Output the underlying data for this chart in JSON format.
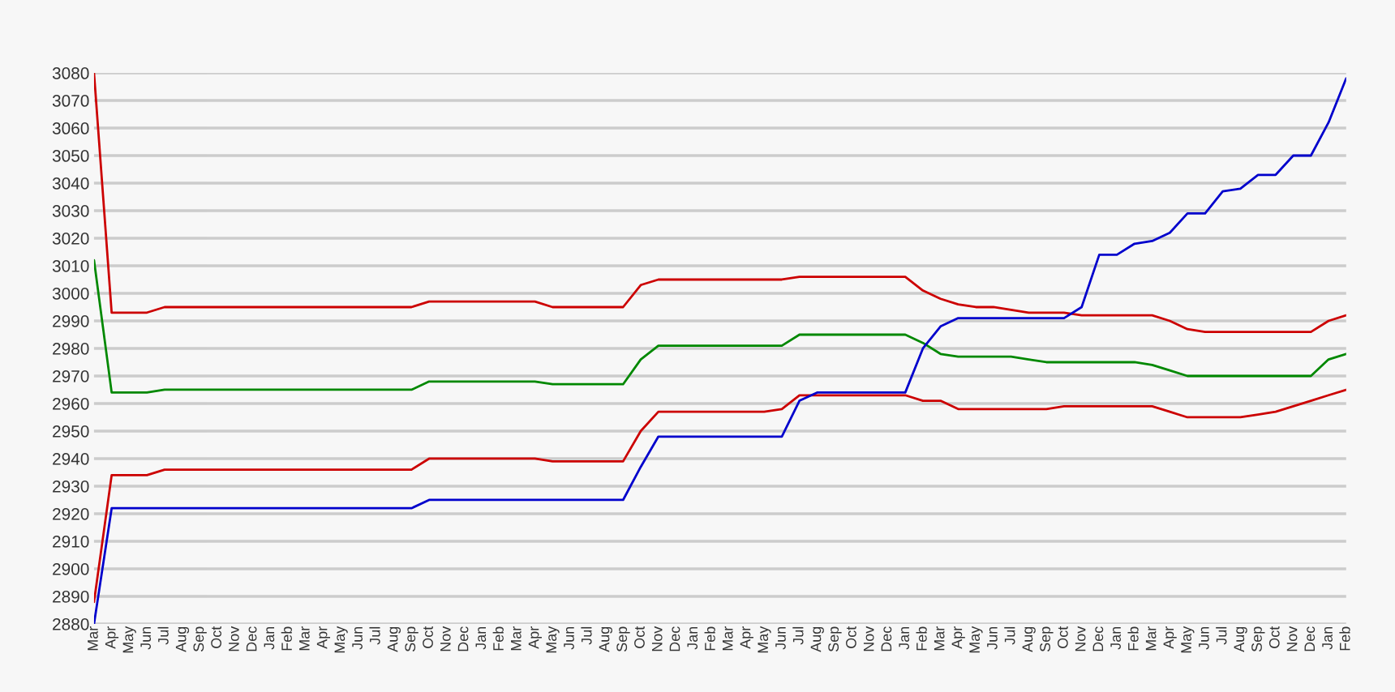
{
  "chart_data": {
    "type": "line",
    "categories": [
      "Mar",
      "Apr",
      "May",
      "Jun",
      "Jul",
      "Aug",
      "Sep",
      "Oct",
      "Nov",
      "Dec",
      "Jan",
      "Feb",
      "Mar",
      "Apr",
      "May",
      "Jun",
      "Jul",
      "Aug",
      "Sep",
      "Oct",
      "Nov",
      "Dec",
      "Jan",
      "Feb",
      "Mar",
      "Apr",
      "May",
      "Jun",
      "Jul",
      "Aug",
      "Sep",
      "Oct",
      "Nov",
      "Dec",
      "Jan",
      "Feb",
      "Mar",
      "Apr",
      "May",
      "Jun",
      "Jul",
      "Aug",
      "Sep",
      "Oct",
      "Nov",
      "Dec",
      "Jan",
      "Feb",
      "Mar",
      "Apr",
      "May",
      "Jun",
      "Jul",
      "Aug",
      "Sep",
      "Oct",
      "Nov",
      "Dec",
      "Jan",
      "Feb",
      "Mar",
      "Apr",
      "May",
      "Jun",
      "Jul",
      "Aug",
      "Sep",
      "Oct",
      "Nov",
      "Dec",
      "Jan",
      "Feb"
    ],
    "series": [
      {
        "color": "#cc0000",
        "values": [
          3080,
          2993,
          2993,
          2993,
          2995,
          2995,
          2995,
          2995,
          2995,
          2995,
          2995,
          2995,
          2995,
          2995,
          2995,
          2995,
          2995,
          2995,
          2995,
          2997,
          2997,
          2997,
          2997,
          2997,
          2997,
          2997,
          2995,
          2995,
          2995,
          2995,
          2995,
          3003,
          3005,
          3005,
          3005,
          3005,
          3005,
          3005,
          3005,
          3005,
          3006,
          3006,
          3006,
          3006,
          3006,
          3006,
          3006,
          3001,
          2998,
          2996,
          2995,
          2995,
          2994,
          2993,
          2993,
          2993,
          2992,
          2992,
          2992,
          2992,
          2992,
          2990,
          2987,
          2986,
          2986,
          2986,
          2986,
          2986,
          2986,
          2986,
          2990,
          2992
        ]
      },
      {
        "color": "#008800",
        "values": [
          3012,
          2964,
          2964,
          2964,
          2965,
          2965,
          2965,
          2965,
          2965,
          2965,
          2965,
          2965,
          2965,
          2965,
          2965,
          2965,
          2965,
          2965,
          2965,
          2968,
          2968,
          2968,
          2968,
          2968,
          2968,
          2968,
          2967,
          2967,
          2967,
          2967,
          2967,
          2976,
          2981,
          2981,
          2981,
          2981,
          2981,
          2981,
          2981,
          2981,
          2985,
          2985,
          2985,
          2985,
          2985,
          2985,
          2985,
          2982,
          2978,
          2977,
          2977,
          2977,
          2977,
          2976,
          2975,
          2975,
          2975,
          2975,
          2975,
          2975,
          2974,
          2972,
          2970,
          2970,
          2970,
          2970,
          2970,
          2970,
          2970,
          2970,
          2976,
          2978
        ]
      },
      {
        "color": "#cc0000",
        "values": [
          2888,
          2934,
          2934,
          2934,
          2936,
          2936,
          2936,
          2936,
          2936,
          2936,
          2936,
          2936,
          2936,
          2936,
          2936,
          2936,
          2936,
          2936,
          2936,
          2940,
          2940,
          2940,
          2940,
          2940,
          2940,
          2940,
          2939,
          2939,
          2939,
          2939,
          2939,
          2950,
          2957,
          2957,
          2957,
          2957,
          2957,
          2957,
          2957,
          2958,
          2963,
          2963,
          2963,
          2963,
          2963,
          2963,
          2963,
          2961,
          2961,
          2958,
          2958,
          2958,
          2958,
          2958,
          2958,
          2959,
          2959,
          2959,
          2959,
          2959,
          2959,
          2957,
          2955,
          2955,
          2955,
          2955,
          2956,
          2957,
          2959,
          2961,
          2963,
          2965
        ]
      },
      {
        "color": "#0000cc",
        "values": [
          2880,
          2922,
          2922,
          2922,
          2922,
          2922,
          2922,
          2922,
          2922,
          2922,
          2922,
          2922,
          2922,
          2922,
          2922,
          2922,
          2922,
          2922,
          2922,
          2925,
          2925,
          2925,
          2925,
          2925,
          2925,
          2925,
          2925,
          2925,
          2925,
          2925,
          2925,
          2937,
          2948,
          2948,
          2948,
          2948,
          2948,
          2948,
          2948,
          2948,
          2961,
          2964,
          2964,
          2964,
          2964,
          2964,
          2964,
          2980,
          2988,
          2991,
          2991,
          2991,
          2991,
          2991,
          2991,
          2991,
          2995,
          3014,
          3014,
          3018,
          3019,
          3022,
          3029,
          3029,
          3037,
          3038,
          3043,
          3043,
          3050,
          3050,
          3062,
          3078
        ]
      }
    ],
    "ylim": [
      2880,
      3080
    ],
    "yticks": [
      2880,
      2890,
      2900,
      2910,
      2920,
      2930,
      2940,
      2950,
      2960,
      2970,
      2980,
      2990,
      3000,
      3010,
      3020,
      3030,
      3040,
      3050,
      3060,
      3070,
      3080
    ],
    "grid": "y"
  }
}
